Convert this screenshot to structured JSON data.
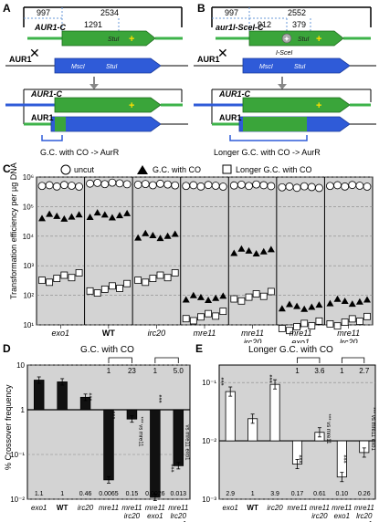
{
  "panels": {
    "a": "A",
    "b": "B",
    "c": "C",
    "d": "D",
    "e": "E"
  },
  "panelA": {
    "dim_left": "997",
    "dim_right": "2534",
    "dim_inner": "1291",
    "top_label": "AUR1-C",
    "site_stu": "StuI",
    "chrom_label": "AUR1",
    "site_msc": "MscI",
    "site_stu2": "StuI",
    "prod_label1": "AUR1-C",
    "prod_label2": "AUR1",
    "caption": "G.C. with CO -> AurR"
  },
  "panelB": {
    "dim_left": "997",
    "dim_right": "2552",
    "dim_inner": "912",
    "dim_inner2": "379",
    "top_label": "aur1I-SceI-C",
    "site_isce": "I-SceI",
    "site_stu": "StuI",
    "chrom_label": "AUR1",
    "site_msc": "MscI",
    "site_stu2": "StuI",
    "prod_label1": "AUR1-C",
    "prod_label2": "AUR1",
    "caption": "Longer G.C. with CO -> AurR"
  },
  "panelC": {
    "legend": [
      "uncut",
      "G.C. with CO",
      "Longer G.C. with CO"
    ],
    "ylabel": "Transformation efficiency per µg DNA",
    "yticks": [
      "10⁶",
      "10⁵",
      "10⁴",
      "10³",
      "10²",
      "10¹"
    ],
    "strains": [
      "exo1",
      "WT",
      "irc20",
      "mre11 ",
      "mre11\nirc20",
      "mre11\nexo1",
      "mre11\nlrc20\nexo1"
    ]
  },
  "panelD": {
    "title": "G.C. with CO",
    "ylabel": "% Crossover frequency",
    "yticks": [
      "10",
      "1",
      "10⁻¹",
      "10⁻²"
    ],
    "top_nums": [
      "1",
      "23",
      "1",
      "5.0"
    ],
    "bottom_nums": [
      "1.1",
      "1",
      "0.46",
      "0.0065",
      "0.15",
      "0.0026",
      "0.013"
    ],
    "stars": "***",
    "vs1": "*** vs mre11",
    "vs2": "vs mre11 exo1",
    "xlabels": [
      "exo1",
      "WT",
      "irc20",
      "mre11",
      "mre11\nirc20",
      "mre11\nexo1",
      "mre11\nlrc20\nexo1"
    ]
  },
  "panelE": {
    "title": "Longer G.C. with CO",
    "yticks": [
      "10⁻¹",
      "10⁻²",
      "10⁻³"
    ],
    "top_nums": [
      "1",
      "3.6",
      "1",
      "2.7"
    ],
    "bottom_nums": [
      "2.9",
      "1",
      "3.9",
      "0.17",
      "0.61",
      "0.10",
      "0.26"
    ],
    "stars": "***",
    "vs1": "*** vs mre11",
    "vs2": "*** vs mre11 exo1",
    "xlabels": [
      "exo1",
      "WT",
      "irc20",
      "mre11",
      "mre11\nirc20",
      "mre11\nexo1",
      "mre11\nlrc20\nexo1"
    ]
  },
  "chart_data": [
    {
      "type": "scatter",
      "title": "",
      "ylabel": "Transformation efficiency per µg DNA",
      "yscale": "log",
      "ylim": [
        10,
        1000000
      ],
      "categories": [
        "exo1",
        "WT",
        "irc20",
        "mre11",
        "mre11 irc20",
        "mre11 exo1",
        "mre11 lrc20 exo1"
      ],
      "series": [
        {
          "name": "uncut",
          "values": [
            500000,
            600000,
            550000,
            500000,
            520000,
            450000,
            500000
          ]
        },
        {
          "name": "G.C. with CO",
          "values": [
            45000,
            50000,
            10000,
            80,
            3000,
            40,
            60
          ]
        },
        {
          "name": "Longer G.C. with CO",
          "values": [
            300,
            130,
            300,
            15,
            70,
            7,
            10
          ]
        }
      ]
    },
    {
      "type": "bar",
      "title": "G.C. with CO",
      "ylabel": "% Crossover frequency",
      "yscale": "log",
      "ylim": [
        0.01,
        10
      ],
      "categories": [
        "exo1",
        "WT",
        "irc20",
        "mre11",
        "mre11 irc20",
        "mre11 exo1",
        "mre11 lrc20 exo1"
      ],
      "values": [
        4.6,
        4.2,
        1.9,
        0.027,
        0.62,
        0.011,
        0.056
      ]
    },
    {
      "type": "bar",
      "title": "Longer G.C. with CO",
      "ylabel": "% Crossover frequency",
      "yscale": "log",
      "ylim": [
        0.001,
        0.2
      ],
      "categories": [
        "exo1",
        "WT",
        "irc20",
        "mre11",
        "mre11 irc20",
        "mre11 exo1",
        "mre11 lrc20 exo1"
      ],
      "values": [
        0.07,
        0.024,
        0.093,
        0.004,
        0.014,
        0.0024,
        0.0063
      ]
    }
  ]
}
